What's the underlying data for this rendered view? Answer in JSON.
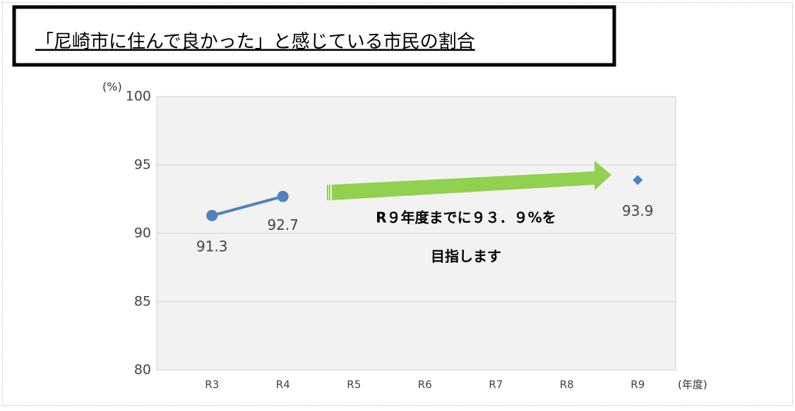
{
  "chart_data": {
    "type": "line",
    "title": "「尼崎市に住んで良かった」と感じている市民の割合",
    "y_label": "(%)",
    "x_label": "(年度)",
    "annotations": [
      "R９年度までに９３．９%を",
      "目指します"
    ],
    "categories": [
      "R3",
      "R4",
      "R5",
      "R6",
      "R7",
      "R8",
      "R9"
    ],
    "series": [
      {
        "color": "#4f81bd",
        "marker": "circle",
        "values": [
          91.3,
          92.7,
          null,
          null,
          null,
          null,
          null
        ]
      },
      {
        "color": "#4f81bd",
        "marker": "diamond",
        "values": [
          null,
          null,
          null,
          null,
          null,
          null,
          93.9
        ]
      }
    ],
    "ylim": [
      80,
      100
    ],
    "yticks": [
      80,
      85,
      90,
      95,
      100
    ],
    "grid": true
  }
}
